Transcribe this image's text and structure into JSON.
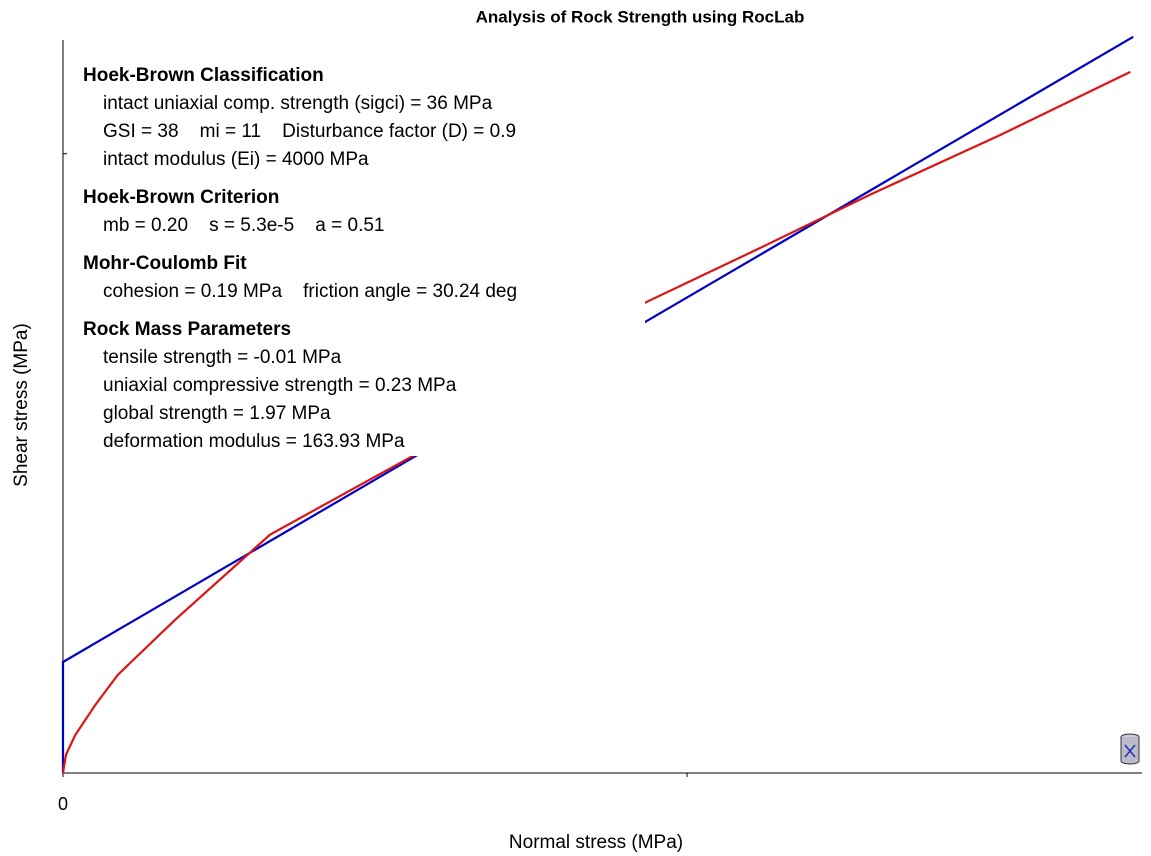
{
  "chart_data": {
    "type": "line",
    "title": "Analysis of Rock Strength using RocLab",
    "xlabel": "Normal stress (MPa)",
    "ylabel": "Shear stress (MPa)",
    "xlim": [
      0,
      1.85
    ],
    "ylim": [
      0,
      1.27
    ],
    "xticks": [
      0,
      {
        "value": 1.07,
        "label": null
      }
    ],
    "yticks": [
      {
        "value": 1.06,
        "label": null
      }
    ],
    "series": [
      {
        "color": "#0000c8",
        "x": [
          0,
          0,
          1.835
        ],
        "values": [
          0,
          0.19,
          1.26
        ]
      },
      {
        "color": "#dc1414",
        "x": [
          0,
          0.005,
          0.021,
          0.055,
          0.094,
          0.192,
          0.355,
          0.604,
          0.998,
          1.196,
          1.384,
          1.607,
          1.83
        ],
        "values": [
          0,
          0.031,
          0.065,
          0.116,
          0.168,
          0.262,
          0.408,
          0.545,
          0.805,
          0.899,
          0.99,
          1.092,
          1.2
        ]
      }
    ],
    "annotations": [
      {
        "heading": "Hoek-Brown Classification",
        "lines": [
          "intact uniaxial comp. strength (sigci) = 36 MPa",
          "GSI = 38    mi = 11    Disturbance factor (D) = 0.9",
          "intact modulus (Ei) = 4000 MPa"
        ]
      },
      {
        "heading": "Hoek-Brown Criterion",
        "lines": [
          "mb = 0.20    s = 5.3e-5    a = 0.51"
        ]
      },
      {
        "heading": "Mohr-Coulomb Fit",
        "lines": [
          "cohesion = 0.19 MPa    friction angle = 30.24 deg"
        ]
      },
      {
        "heading": "Rock Mass Parameters",
        "lines": [
          "tensile strength = -0.01 MPa",
          "uniaxial compressive strength = 0.23 MPa",
          "global strength = 1.97 MPa",
          "deformation modulus = 163.93 MPa"
        ]
      }
    ]
  }
}
